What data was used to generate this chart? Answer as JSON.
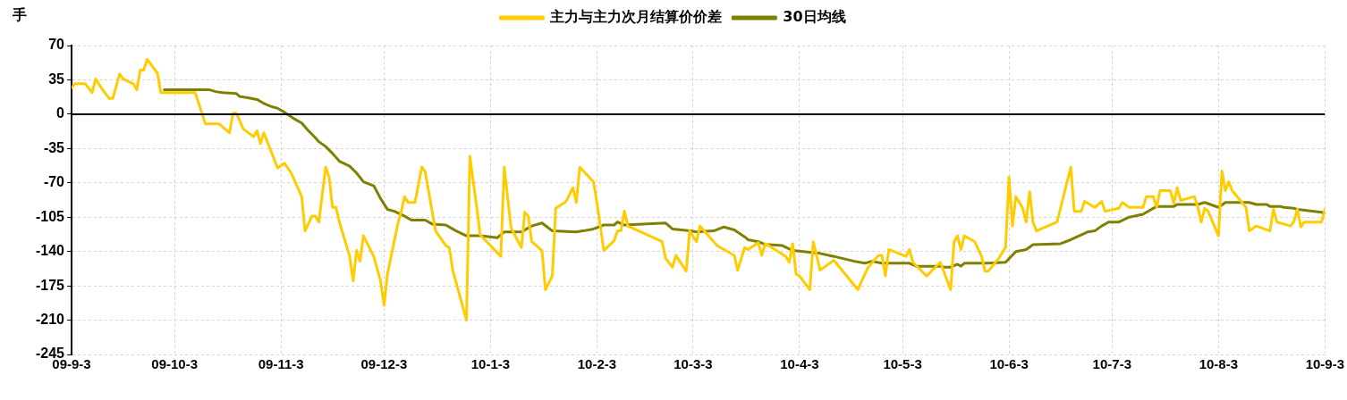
{
  "chart_data": {
    "type": "line",
    "ylabel": "手",
    "legend": "top",
    "grid": true,
    "marker": "none",
    "line_style": "solid",
    "xlim": [
      "2009-09-03",
      "2010-09-03"
    ],
    "xticks": [
      {
        "value": "2009-09-03",
        "label": "09-9-3"
      },
      {
        "value": "2009-10-03",
        "label": "09-10-3"
      },
      {
        "value": "2009-11-03",
        "label": "09-11-3"
      },
      {
        "value": "2009-12-03",
        "label": "09-12-3"
      },
      {
        "value": "2010-01-03",
        "label": "10-1-3"
      },
      {
        "value": "2010-02-03",
        "label": "10-2-3"
      },
      {
        "value": "2010-03-03",
        "label": "10-3-3"
      },
      {
        "value": "2010-04-03",
        "label": "10-4-3"
      },
      {
        "value": "2010-05-03",
        "label": "10-5-3"
      },
      {
        "value": "2010-06-03",
        "label": "10-6-3"
      },
      {
        "value": "2010-07-03",
        "label": "10-7-3"
      },
      {
        "value": "2010-08-03",
        "label": "10-8-3"
      },
      {
        "value": "2010-09-03",
        "label": "10-9-3"
      }
    ],
    "ylim": [
      -245,
      70
    ],
    "yticks": [
      -245,
      -210,
      -175,
      -140,
      -105,
      -70,
      -35,
      0,
      35,
      70
    ],
    "ref_lines": [
      {
        "axis": "y",
        "value": 0,
        "color": "#000000"
      }
    ],
    "series": [
      {
        "name": "主力与主力次月结算价价差",
        "color": "#ffcc00",
        "x": [
          "2009-09-03",
          "2009-09-04",
          "2009-09-07",
          "2009-09-09",
          "2009-09-10",
          "2009-09-12",
          "2009-09-14",
          "2009-09-15",
          "2009-09-17",
          "2009-09-18",
          "2009-09-21",
          "2009-09-22",
          "2009-09-23",
          "2009-09-24",
          "2009-09-25",
          "2009-09-28",
          "2009-09-29",
          "2009-10-09",
          "2009-10-12",
          "2009-10-16",
          "2009-10-19",
          "2009-10-20",
          "2009-10-21",
          "2009-10-23",
          "2009-10-26",
          "2009-10-27",
          "2009-10-28",
          "2009-10-29",
          "2009-10-30",
          "2009-11-02",
          "2009-11-04",
          "2009-11-06",
          "2009-11-09",
          "2009-11-10",
          "2009-11-12",
          "2009-11-13",
          "2009-11-14",
          "2009-11-16",
          "2009-11-17",
          "2009-11-18",
          "2009-11-19",
          "2009-11-20",
          "2009-11-23",
          "2009-11-24",
          "2009-11-25",
          "2009-11-26",
          "2009-11-27",
          "2009-11-30",
          "2009-12-02",
          "2009-12-03",
          "2009-12-04",
          "2009-12-07",
          "2009-12-08",
          "2009-12-09",
          "2009-12-10",
          "2009-12-12",
          "2009-12-14",
          "2009-12-15",
          "2009-12-18",
          "2009-12-21",
          "2009-12-22",
          "2009-12-23",
          "2009-12-27",
          "2009-12-28",
          "2009-12-30",
          "2009-12-31",
          "2010-01-06",
          "2010-01-07",
          "2010-01-09",
          "2010-01-12",
          "2010-01-13",
          "2010-01-14",
          "2010-01-15",
          "2010-01-18",
          "2010-01-19",
          "2010-01-21",
          "2010-01-22",
          "2010-01-25",
          "2010-01-27",
          "2010-01-28",
          "2010-01-29",
          "2010-02-02",
          "2010-02-03",
          "2010-02-05",
          "2010-02-08",
          "2010-02-09",
          "2010-02-10",
          "2010-02-11",
          "2010-02-12",
          "2010-02-22",
          "2010-02-23",
          "2010-02-25",
          "2010-02-26",
          "2010-03-01",
          "2010-03-02",
          "2010-03-04",
          "2010-03-05",
          "2010-03-09",
          "2010-03-10",
          "2010-03-12",
          "2010-03-15",
          "2010-03-16",
          "2010-03-18",
          "2010-03-19",
          "2010-03-22",
          "2010-03-23",
          "2010-03-24",
          "2010-03-25",
          "2010-03-30",
          "2010-03-31",
          "2010-04-01",
          "2010-04-02",
          "2010-04-03",
          "2010-04-06",
          "2010-04-07",
          "2010-04-09",
          "2010-04-13",
          "2010-04-20",
          "2010-04-21",
          "2010-04-23",
          "2010-04-26",
          "2010-04-27",
          "2010-04-28",
          "2010-04-29",
          "2010-05-04",
          "2010-05-05",
          "2010-05-06",
          "2010-05-10",
          "2010-05-14",
          "2010-05-17",
          "2010-05-18",
          "2010-05-19",
          "2010-05-20",
          "2010-05-21",
          "2010-05-24",
          "2010-05-26",
          "2010-05-27",
          "2010-05-28",
          "2010-05-31",
          "2010-06-02",
          "2010-06-03",
          "2010-06-04",
          "2010-06-05",
          "2010-06-07",
          "2010-06-08",
          "2010-06-09",
          "2010-06-10",
          "2010-06-11",
          "2010-06-17",
          "2010-06-21",
          "2010-06-22",
          "2010-06-24",
          "2010-06-25",
          "2010-06-28",
          "2010-06-30",
          "2010-07-01",
          "2010-07-05",
          "2010-07-06",
          "2010-07-08",
          "2010-07-12",
          "2010-07-13",
          "2010-07-15",
          "2010-07-16",
          "2010-07-17",
          "2010-07-20",
          "2010-07-21",
          "2010-07-22",
          "2010-07-23",
          "2010-07-27",
          "2010-07-28",
          "2010-07-29",
          "2010-07-30",
          "2010-07-31",
          "2010-08-03",
          "2010-08-04",
          "2010-08-05",
          "2010-08-06",
          "2010-08-07",
          "2010-08-11",
          "2010-08-12",
          "2010-08-14",
          "2010-08-18",
          "2010-08-19",
          "2010-08-20",
          "2010-08-24",
          "2010-08-25",
          "2010-08-26",
          "2010-08-27",
          "2010-08-28",
          "2010-09-01",
          "2010-09-02",
          "2010-09-03"
        ],
        "values": [
          27,
          31,
          31,
          22,
          36,
          25,
          16,
          16,
          41,
          36,
          31,
          25,
          45,
          45,
          56,
          42,
          22,
          22,
          -10,
          -10,
          -19,
          1,
          1,
          -15,
          -23,
          -17,
          -30,
          -19,
          -28,
          -55,
          -50,
          -60,
          -84,
          -119,
          -104,
          -104,
          -110,
          -54,
          -64,
          -95,
          -95,
          -110,
          -145,
          -170,
          -139,
          -150,
          -124,
          -145,
          -170,
          -195,
          -163,
          -112,
          -99,
          -84,
          -90,
          -90,
          -54,
          -59,
          -119,
          -134,
          -136,
          -159,
          -210,
          -43,
          -95,
          -123,
          -145,
          -54,
          -116,
          -136,
          -100,
          -104,
          -130,
          -139,
          -179,
          -165,
          -96,
          -89,
          -75,
          -90,
          -54,
          -69,
          -90,
          -139,
          -129,
          -119,
          -119,
          -99,
          -114,
          -130,
          -147,
          -156,
          -144,
          -160,
          -119,
          -130,
          -114,
          -130,
          -134,
          -138,
          -144,
          -159,
          -136,
          -138,
          -131,
          -144,
          -132,
          -134,
          -145,
          -151,
          -132,
          -163,
          -165,
          -179,
          -130,
          -159,
          -149,
          -179,
          -171,
          -156,
          -144,
          -144,
          -165,
          -138,
          -145,
          -138,
          -151,
          -165,
          -151,
          -179,
          -130,
          -124,
          -138,
          -124,
          -130,
          -145,
          -160,
          -160,
          -147,
          -136,
          -64,
          -114,
          -84,
          -96,
          -110,
          -79,
          -110,
          -119,
          -110,
          -54,
          -99,
          -99,
          -89,
          -95,
          -89,
          -99,
          -96,
          -90,
          -95,
          -95,
          -84,
          -84,
          -95,
          -78,
          -78,
          -91,
          -75,
          -88,
          -84,
          -95,
          -110,
          -96,
          -99,
          -124,
          -58,
          -78,
          -69,
          -78,
          -95,
          -119,
          -114,
          -119,
          -97,
          -110,
          -114,
          -109,
          -97,
          -115,
          -110,
          -110,
          -110,
          -97
        ]
      },
      {
        "name": "30日均线",
        "color": "#808000",
        "x": [
          "2009-09-30",
          "2009-10-13",
          "2009-10-15",
          "2009-10-17",
          "2009-10-21",
          "2009-10-22",
          "2009-10-24",
          "2009-10-27",
          "2009-10-29",
          "2009-10-31",
          "2009-11-02",
          "2009-11-04",
          "2009-11-07",
          "2009-11-09",
          "2009-11-11",
          "2009-11-13",
          "2009-11-14",
          "2009-11-16",
          "2009-11-18",
          "2009-11-20",
          "2009-11-23",
          "2009-11-25",
          "2009-11-27",
          "2009-11-30",
          "2009-12-02",
          "2009-12-04",
          "2009-12-06",
          "2009-12-09",
          "2009-12-11",
          "2009-12-15",
          "2009-12-17",
          "2009-12-21",
          "2009-12-24",
          "2009-12-27",
          "2009-12-31",
          "2010-01-05",
          "2010-01-07",
          "2010-01-12",
          "2010-01-15",
          "2010-01-18",
          "2010-01-21",
          "2010-01-28",
          "2010-01-30",
          "2010-02-02",
          "2010-02-05",
          "2010-02-08",
          "2010-02-09",
          "2010-02-11",
          "2010-02-23",
          "2010-02-25",
          "2010-03-02",
          "2010-03-04",
          "2010-03-09",
          "2010-03-12",
          "2010-03-15",
          "2010-03-18",
          "2010-03-19",
          "2010-03-22",
          "2010-03-24",
          "2010-03-25",
          "2010-03-29",
          "2010-04-01",
          "2010-04-09",
          "2010-04-13",
          "2010-04-19",
          "2010-04-22",
          "2010-04-24",
          "2010-04-27",
          "2010-05-05",
          "2010-05-07",
          "2010-05-14",
          "2010-05-15",
          "2010-05-17",
          "2010-05-19",
          "2010-05-20",
          "2010-05-21",
          "2010-05-28",
          "2010-06-02",
          "2010-06-05",
          "2010-06-08",
          "2010-06-10",
          "2010-06-18",
          "2010-06-21",
          "2010-06-26",
          "2010-06-28",
          "2010-06-30",
          "2010-07-02",
          "2010-07-05",
          "2010-07-08",
          "2010-07-12",
          "2010-07-16",
          "2010-07-21",
          "2010-07-22",
          "2010-07-28",
          "2010-07-30",
          "2010-08-03",
          "2010-08-05",
          "2010-08-12",
          "2010-08-14",
          "2010-08-17",
          "2010-08-18",
          "2010-08-21",
          "2010-08-22",
          "2010-08-25",
          "2010-08-26",
          "2010-09-02",
          "2010-09-03"
        ],
        "values": [
          25,
          25,
          23,
          22,
          21,
          18,
          17,
          15,
          11,
          8,
          6,
          2,
          -5,
          -9,
          -17,
          -24,
          -28,
          -33,
          -40,
          -48,
          -53,
          -60,
          -69,
          -73,
          -86,
          -97,
          -99,
          -104,
          -108,
          -108,
          -112,
          -113,
          -119,
          -124,
          -124,
          -126,
          -120,
          -120,
          -114,
          -111,
          -119,
          -120,
          -119,
          -117,
          -113,
          -113,
          -110,
          -113,
          -111,
          -117,
          -119,
          -120,
          -119,
          -115,
          -118,
          -125,
          -128,
          -130,
          -133,
          -133,
          -134,
          -139,
          -142,
          -145,
          -150,
          -152,
          -150,
          -152,
          -152,
          -155,
          -155,
          -156,
          -156,
          -153,
          -155,
          -152,
          -152,
          -151,
          -140,
          -138,
          -133,
          -132,
          -128,
          -120,
          -119,
          -114,
          -110,
          -110,
          -105,
          -102,
          -94,
          -94,
          -92,
          -92,
          -90,
          -95,
          -90,
          -90,
          -92,
          -92,
          -94,
          -94,
          -95,
          -96,
          -97,
          -100,
          -101
        ]
      }
    ]
  }
}
